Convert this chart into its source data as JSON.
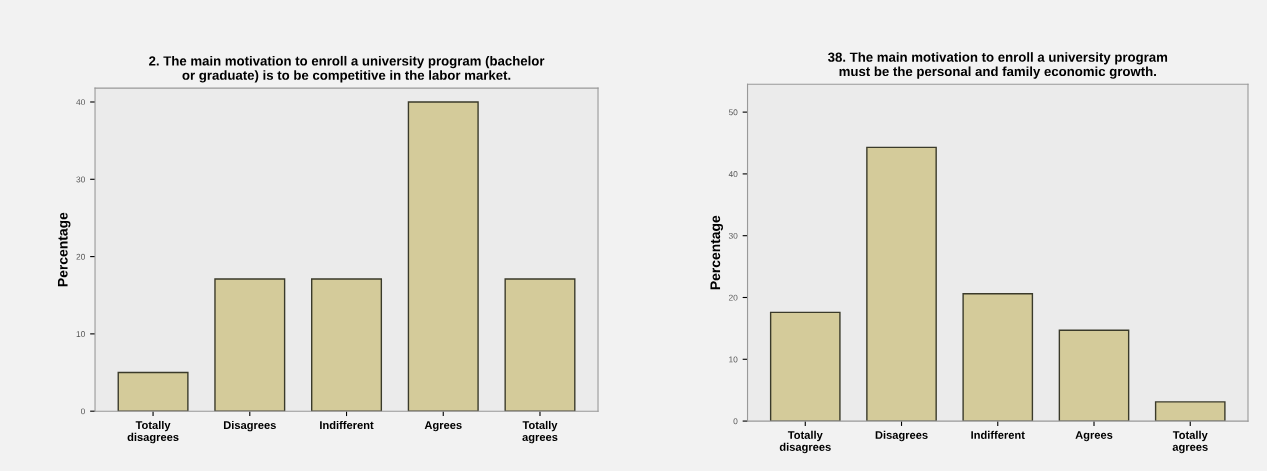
{
  "chart_data": [
    {
      "type": "bar",
      "title": "2. The main motivation to enroll a university program (bachelor\nor graduate) is to be competitive in the labor market.",
      "ylabel": "Percentage",
      "categories": [
        "Totally\ndisagrees",
        "Disagrees",
        "Indifferent",
        "Agrees",
        "Totally\nagrees"
      ],
      "values": [
        5,
        17.1,
        17.1,
        40,
        17.1
      ],
      "color": "#d4cb9a",
      "ylim": [
        0,
        41.8
      ],
      "yticks": [
        0,
        10,
        20,
        30,
        40
      ],
      "grid": false
    },
    {
      "type": "bar",
      "title": "38. The main motivation to enroll a university program\nmust be the personal and family economic growth.",
      "ylabel": "Percentage",
      "categories": [
        "Totally\ndisagrees",
        "Disagrees",
        "Indifferent",
        "Agrees",
        "Totally\nagrees"
      ],
      "values": [
        17.6,
        44.3,
        20.6,
        14.7,
        3.1
      ],
      "color": "#d4cb9a",
      "ylim": [
        0,
        54.5
      ],
      "yticks": [
        0,
        10,
        20,
        30,
        40,
        50
      ],
      "grid": false
    }
  ]
}
